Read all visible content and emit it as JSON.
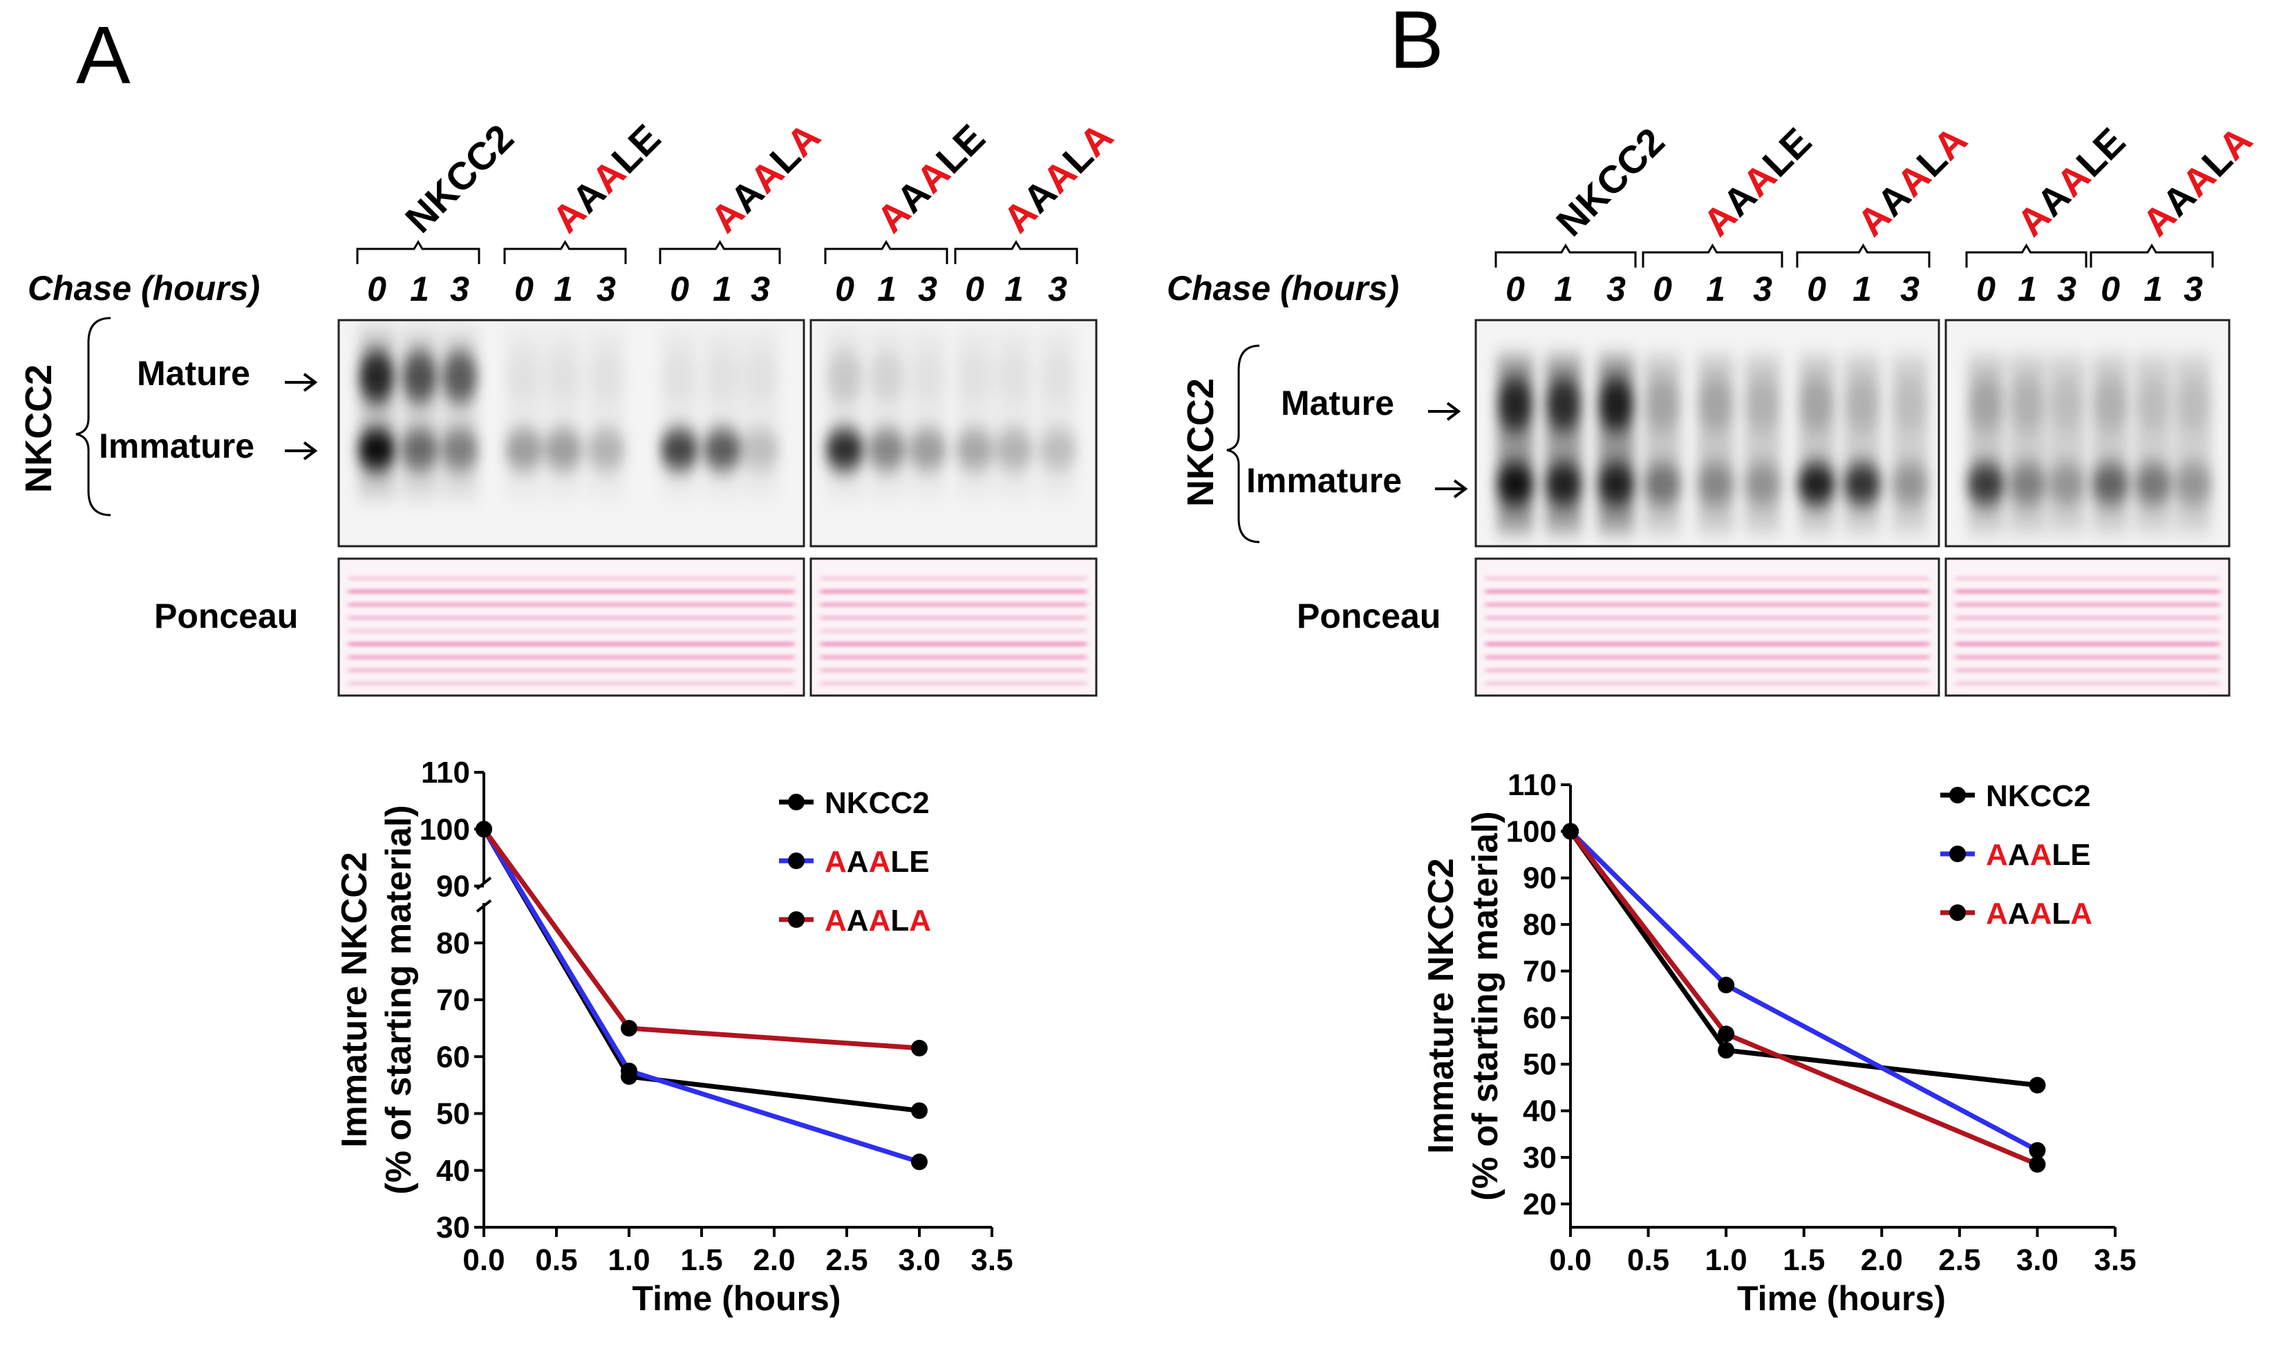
{
  "panels": [
    {
      "letter": "A",
      "chase_label": "Chase (hours)",
      "protein_label": "NKCC2",
      "band_labels": {
        "mature": "Mature",
        "immature": "Immature"
      },
      "stain_label": "Ponceau",
      "groups": [
        {
          "name": "NKCC2",
          "red_mask": [
            0,
            0,
            0,
            0,
            0
          ]
        },
        {
          "name": "AAALE",
          "red_mask": [
            1,
            0,
            1,
            0,
            0
          ]
        },
        {
          "name": "AAALA",
          "red_mask": [
            1,
            0,
            1,
            0,
            1
          ]
        },
        {
          "name": "AAALE",
          "red_mask": [
            1,
            0,
            1,
            0,
            0
          ]
        },
        {
          "name": "AAALA",
          "red_mask": [
            1,
            0,
            1,
            0,
            1
          ]
        }
      ],
      "timepoints": [
        "0",
        "1",
        "3"
      ]
    },
    {
      "letter": "B",
      "chase_label": "Chase (hours)",
      "protein_label": "NKCC2",
      "band_labels": {
        "mature": "Mature",
        "immature": "Immature"
      },
      "stain_label": "Ponceau",
      "groups": [
        {
          "name": "NKCC2",
          "red_mask": [
            0,
            0,
            0,
            0,
            0
          ]
        },
        {
          "name": "AAALE",
          "red_mask": [
            1,
            0,
            1,
            0,
            0
          ]
        },
        {
          "name": "AAALA",
          "red_mask": [
            1,
            0,
            1,
            0,
            1
          ]
        },
        {
          "name": "AAALE",
          "red_mask": [
            1,
            0,
            1,
            0,
            0
          ]
        },
        {
          "name": "AAALA",
          "red_mask": [
            1,
            0,
            1,
            0,
            1
          ]
        }
      ],
      "timepoints": [
        "0",
        "1",
        "3"
      ]
    }
  ],
  "colors": {
    "mutation": "#e8151b",
    "nkcc2": "#000000",
    "aaale": "#2e2ef0",
    "aaala": "#b0141f",
    "ponceau": "#e23c8c"
  },
  "chart_data": [
    {
      "type": "line",
      "title": "",
      "xlabel": "Time (hours)",
      "ylabel": "Immature NKCC2 (% of starting material)",
      "xlim": [
        0,
        3.5
      ],
      "ylim": [
        30,
        110
      ],
      "xticks": [
        "0.0",
        "0.5",
        "1.0",
        "1.5",
        "2.0",
        "2.5",
        "3.0",
        "3.5"
      ],
      "yticks": [
        "30",
        "40",
        "50",
        "60",
        "70",
        "80",
        "90",
        "100",
        "110"
      ],
      "axis_break": true,
      "legend_position": "top-right",
      "series": [
        {
          "name": "NKCC2",
          "name_red_mask": [
            0,
            0,
            0,
            0,
            0
          ],
          "x": [
            0,
            1,
            3
          ],
          "y": [
            100,
            56.5,
            50.5
          ]
        },
        {
          "name": "AAALE",
          "name_red_mask": [
            1,
            0,
            1,
            0,
            0
          ],
          "x": [
            0,
            1,
            3
          ],
          "y": [
            100,
            57.5,
            41.5
          ]
        },
        {
          "name": "AAALA",
          "name_red_mask": [
            1,
            0,
            1,
            0,
            1
          ],
          "x": [
            0,
            1,
            3
          ],
          "y": [
            100,
            65,
            61.5
          ]
        }
      ]
    },
    {
      "type": "line",
      "title": "",
      "xlabel": "Time (hours)",
      "ylabel": "Immature NKCC2 (% of starting material)",
      "xlim": [
        0,
        3.5
      ],
      "ylim": [
        15,
        110
      ],
      "xticks": [
        "0.0",
        "0.5",
        "1.0",
        "1.5",
        "2.0",
        "2.5",
        "3.0",
        "3.5"
      ],
      "yticks": [
        "20",
        "30",
        "40",
        "50",
        "60",
        "70",
        "80",
        "90",
        "100",
        "110"
      ],
      "axis_break": false,
      "legend_position": "top-right",
      "series": [
        {
          "name": "NKCC2",
          "name_red_mask": [
            0,
            0,
            0,
            0,
            0
          ],
          "x": [
            0,
            1,
            3
          ],
          "y": [
            100,
            53,
            45.5
          ]
        },
        {
          "name": "AAALE",
          "name_red_mask": [
            1,
            0,
            1,
            0,
            0
          ],
          "x": [
            0,
            1,
            3
          ],
          "y": [
            100,
            67,
            31.5
          ]
        },
        {
          "name": "AAALA",
          "name_red_mask": [
            1,
            0,
            1,
            0,
            1
          ],
          "x": [
            0,
            1,
            3
          ],
          "y": [
            100,
            56.5,
            28.5
          ]
        }
      ]
    }
  ]
}
